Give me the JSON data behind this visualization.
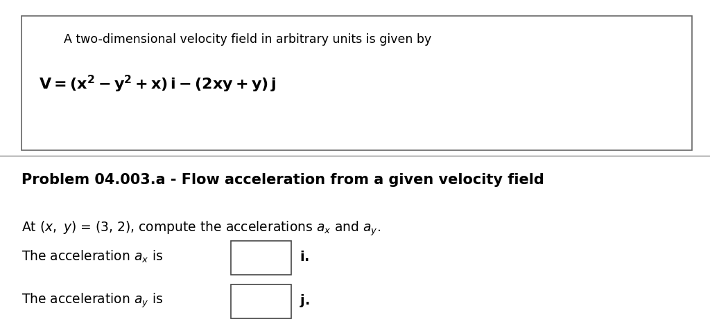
{
  "background_color": "#ffffff",
  "box_text_line1": "A two-dimensional velocity field in arbitrary units is given by",
  "problem_title": "Problem 04.003.a - Flow acceleration from a given velocity field",
  "fig_width": 10.24,
  "fig_height": 4.85,
  "dpi": 100
}
